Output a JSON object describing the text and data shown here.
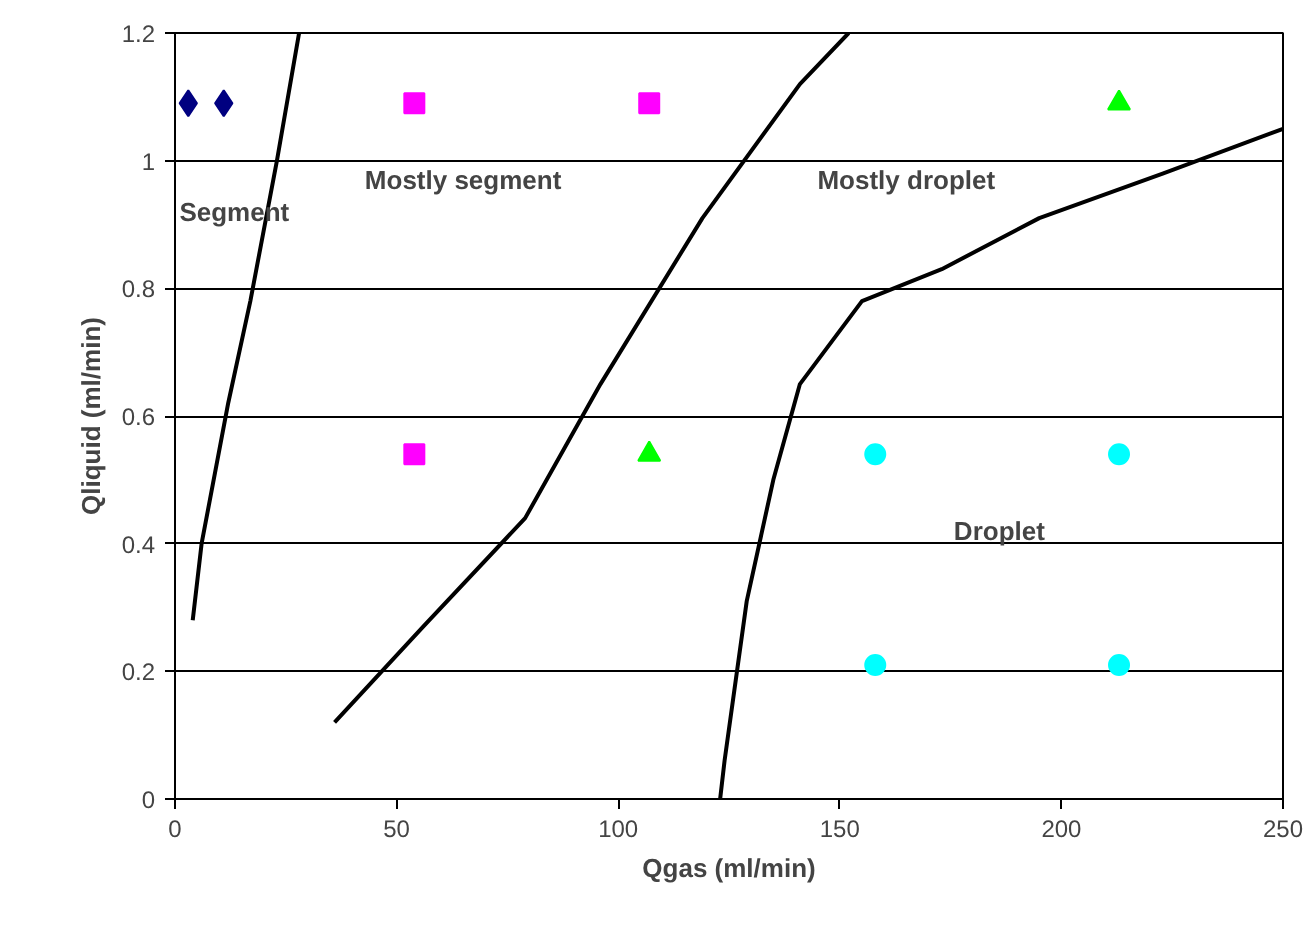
{
  "chart_data": {
    "type": "scatter",
    "xlabel": "Qgas (ml/min)",
    "ylabel": "Qliquid (ml/min)",
    "xlim": [
      0,
      250
    ],
    "xticks": [
      0,
      50,
      100,
      150,
      200,
      250
    ],
    "ylim": [
      0,
      1.2
    ],
    "yticks": [
      0,
      0.2,
      0.4,
      0.6,
      0.8,
      1,
      1.2
    ],
    "grid": "y",
    "series": [
      {
        "marker": "diamond",
        "color": "#000080",
        "x": [
          3,
          11
        ],
        "values": [
          1.09,
          1.09
        ]
      },
      {
        "marker": "square",
        "color": "#ff00ff",
        "x": [
          54,
          107,
          54
        ],
        "values": [
          1.09,
          1.09,
          0.54
        ]
      },
      {
        "marker": "triangle",
        "color": "#00ff00",
        "x": [
          213,
          107
        ],
        "values": [
          1.09,
          0.54
        ]
      },
      {
        "marker": "circle",
        "color": "#00ffff",
        "x": [
          158,
          213,
          158,
          213
        ],
        "values": [
          0.54,
          0.54,
          0.21,
          0.21
        ]
      },
      {
        "type": "line",
        "color": "#000000",
        "x": [
          4,
          6,
          12,
          17,
          23,
          28
        ],
        "values": [
          0.28,
          0.4,
          0.62,
          0.78,
          1.0,
          1.2
        ]
      },
      {
        "type": "line",
        "color": "#000000",
        "x": [
          36,
          56,
          79,
          96,
          119,
          141,
          152
        ],
        "values": [
          0.12,
          0.27,
          0.44,
          0.65,
          0.91,
          1.12,
          1.2
        ]
      },
      {
        "type": "line",
        "color": "#000000",
        "x": [
          123,
          124,
          129,
          135,
          141,
          155,
          173,
          195,
          223,
          250
        ],
        "values": [
          0,
          0.06,
          0.31,
          0.5,
          0.65,
          0.78,
          0.83,
          0.91,
          0.98,
          1.05
        ]
      }
    ],
    "annotations": [
      "Segment",
      "Mostly segment",
      "Mostly droplet",
      "Droplet"
    ]
  }
}
